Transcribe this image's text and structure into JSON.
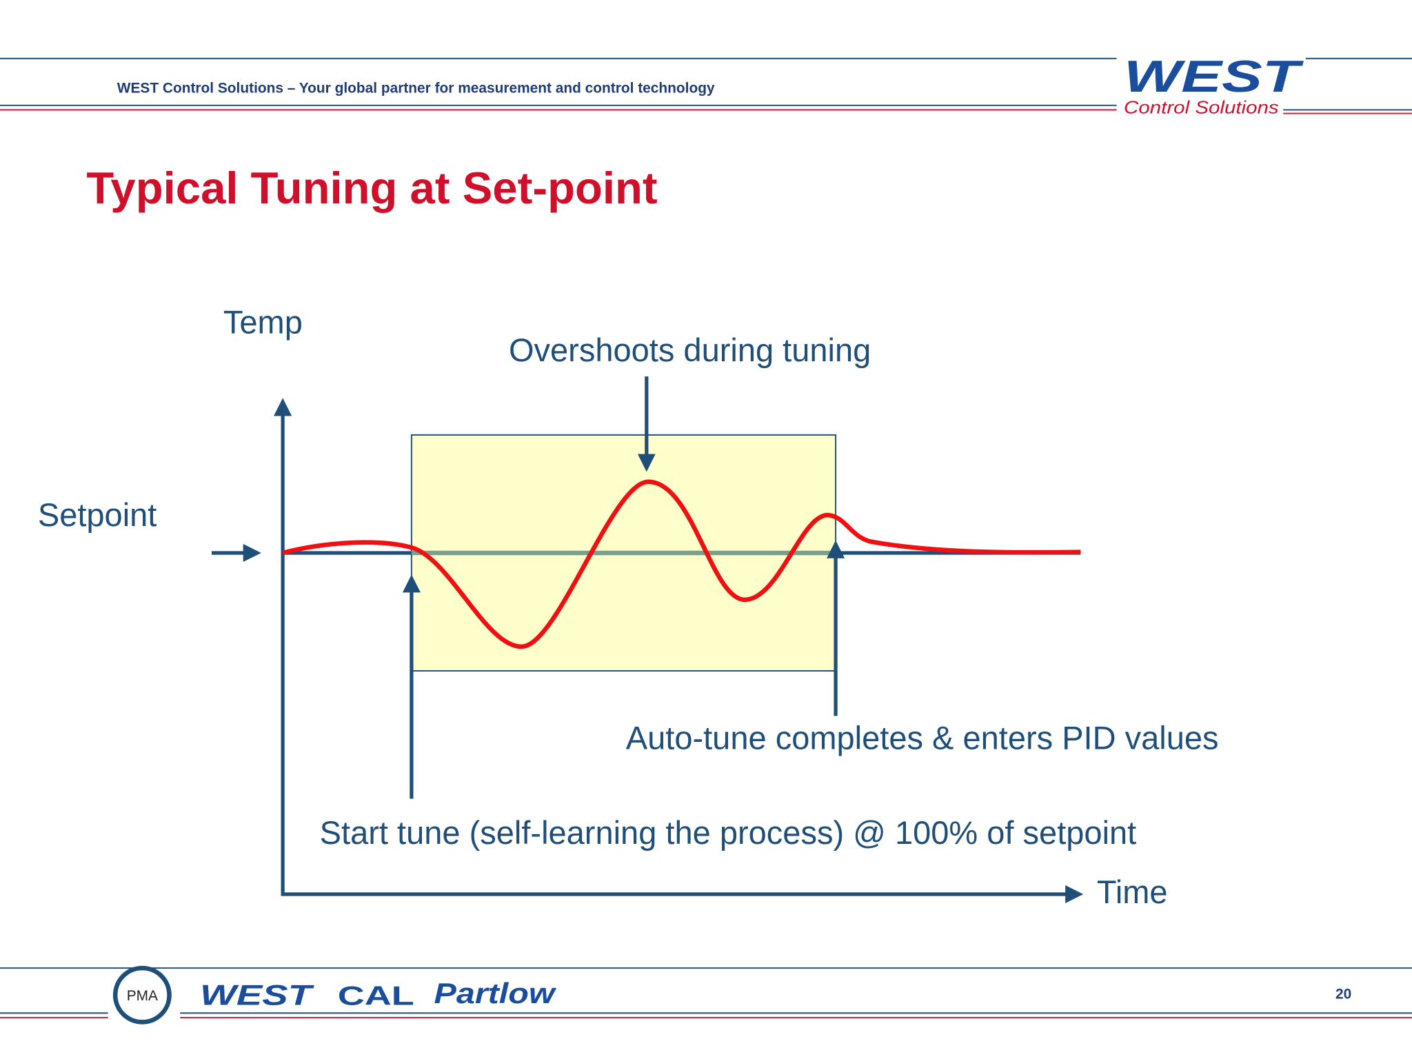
{
  "header": {
    "tagline": "WEST Control Solutions – Your global partner for measurement and control technology",
    "logo": "WEST",
    "logo_sub": "Control Solutions"
  },
  "title": "Typical Tuning at Set-point",
  "diagram": {
    "y_label": "Temp",
    "x_label": "Time",
    "setpoint": "Setpoint",
    "overshoot": "Overshoots during tuning",
    "complete": "Auto-tune completes & enters PID values",
    "start": "Start tune (self-learning the process) @ 100% of setpoint"
  },
  "footer": {
    "pma": "PMA",
    "west": "WEST",
    "cal": "CAL",
    "partlow": "Partlow",
    "page": "20"
  }
}
